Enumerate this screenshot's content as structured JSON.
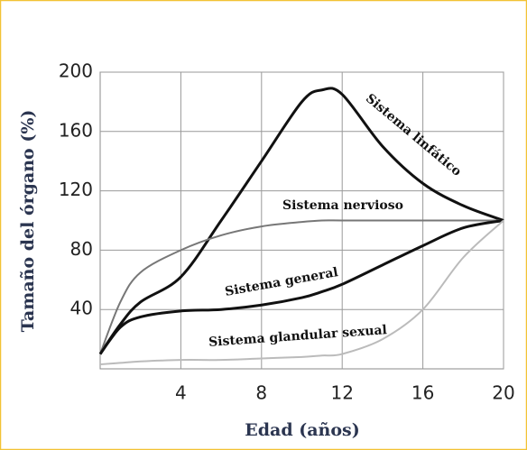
{
  "chart_data": {
    "type": "line",
    "xlabel": "Edad (años)",
    "ylabel": "Tamaño del órgano (%)",
    "xlim": [
      0,
      20
    ],
    "ylim": [
      0,
      200
    ],
    "xticks": [
      4,
      8,
      12,
      16,
      20
    ],
    "yticks": [
      40,
      80,
      120,
      160,
      200
    ],
    "grid": true,
    "x": [
      0,
      1,
      2,
      4,
      6,
      8,
      10,
      11,
      12,
      14,
      16,
      18,
      20
    ],
    "series": [
      {
        "name": "Sistema linfático",
        "color": "#111111",
        "values": [
          10,
          30,
          45,
          62,
          100,
          140,
          180,
          188,
          185,
          150,
          125,
          110,
          100
        ]
      },
      {
        "name": "Sistema nervioso",
        "color": "#777777",
        "values": [
          10,
          45,
          65,
          80,
          90,
          96,
          99,
          100,
          100,
          100,
          100,
          100,
          100
        ]
      },
      {
        "name": "Sistema general",
        "color": "#111111",
        "values": [
          10,
          28,
          35,
          39,
          40,
          43,
          48,
          52,
          57,
          70,
          83,
          95,
          100
        ]
      },
      {
        "name": "Sistema glandular sexual",
        "color": "#bbbbbb",
        "values": [
          3,
          4,
          5,
          6,
          6,
          7,
          8,
          9,
          10,
          20,
          40,
          75,
          100
        ]
      }
    ]
  }
}
